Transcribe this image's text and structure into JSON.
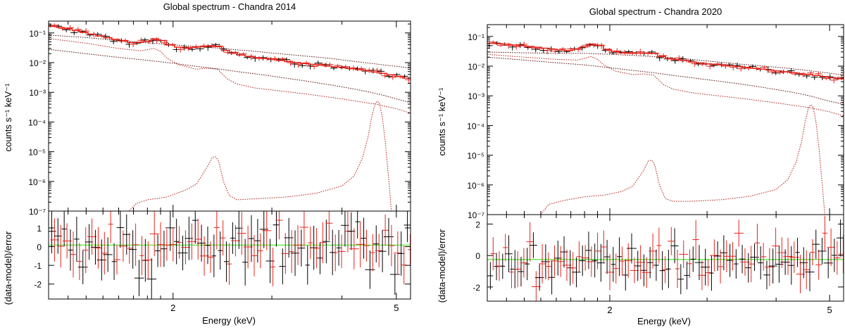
{
  "chart_data": [
    {
      "type": "line",
      "title": "Global spectrum - Chandra 2014",
      "xlabel": "Energy (keV)",
      "ylabel_top": "counts s⁻¹ keV⁻¹",
      "ylabel_bottom": "(data-model)/error",
      "x_scale": "log",
      "xlim": [
        1.2,
        5.3
      ],
      "x_ticks": [
        {
          "v": 2,
          "label": "2"
        },
        {
          "v": 5,
          "label": "5"
        }
      ],
      "top_y_scale": "log",
      "top_ylim": [
        1e-07,
        0.25
      ],
      "top_y_ticks": [
        {
          "v": 0.1,
          "label": "10⁻¹"
        },
        {
          "v": 0.01,
          "label": "10⁻²"
        },
        {
          "v": 0.001,
          "label": "10⁻³"
        },
        {
          "v": 0.0001,
          "label": "10⁻⁴"
        },
        {
          "v": 1e-05,
          "label": "10⁻⁵"
        },
        {
          "v": 1e-06,
          "label": "10⁻⁶"
        },
        {
          "v": 1e-07,
          "label": "10⁻⁷"
        }
      ],
      "bottom_ylim": [
        -2.8,
        1.9
      ],
      "bottom_y_ticks": [
        {
          "v": 1,
          "label": "1"
        },
        {
          "v": 0,
          "label": "0"
        },
        {
          "v": -1,
          "label": "-1"
        },
        {
          "v": -2,
          "label": "-2"
        }
      ],
      "zero_line": 0.08,
      "colors": {
        "obs1": "#000000",
        "obs2": "#e8231a",
        "zero": "#66ee55"
      },
      "model": {
        "x": [
          1.2,
          1.3,
          1.4,
          1.5,
          1.6,
          1.7,
          1.8,
          1.87,
          1.92,
          2.0,
          2.1,
          2.2,
          2.3,
          2.4,
          2.5,
          2.6,
          2.7,
          2.8,
          2.9,
          3.0,
          3.2,
          3.4,
          3.6,
          3.8,
          4.0,
          4.3,
          4.6,
          5.0,
          5.3
        ],
        "y": [
          0.175,
          0.14,
          0.1,
          0.075,
          0.057,
          0.046,
          0.052,
          0.066,
          0.055,
          0.035,
          0.031,
          0.033,
          0.036,
          0.035,
          0.024,
          0.019,
          0.017,
          0.015,
          0.014,
          0.013,
          0.011,
          0.0095,
          0.0085,
          0.0075,
          0.0068,
          0.0058,
          0.0048,
          0.0036,
          0.0028
        ]
      },
      "components": [
        {
          "x": [
            1.2,
            1.4,
            1.6,
            1.8,
            1.9,
            2.0,
            2.2,
            2.4,
            2.6,
            2.8,
            3.0,
            3.4,
            3.8,
            4.2,
            4.6,
            5.0,
            5.3
          ],
          "y": [
            0.085,
            0.07,
            0.055,
            0.046,
            0.043,
            0.04,
            0.035,
            0.031,
            0.027,
            0.024,
            0.021,
            0.017,
            0.014,
            0.011,
            0.009,
            0.0075,
            0.0066
          ]
        },
        {
          "x": [
            1.2,
            1.4,
            1.6,
            1.75,
            1.85,
            1.9,
            1.95,
            2.05,
            2.2,
            2.3,
            2.4,
            2.5,
            2.6,
            2.8,
            3.0,
            3.5,
            4.0,
            4.4,
            4.6,
            5.0,
            5.3
          ],
          "y": [
            0.065,
            0.045,
            0.03,
            0.025,
            0.03,
            0.024,
            0.014,
            0.0085,
            0.006,
            0.0065,
            0.006,
            0.0028,
            0.0019,
            0.0014,
            0.0012,
            0.00085,
            0.0006,
            0.00045,
            0.0004,
            0.00028,
            0.0002
          ]
        },
        {
          "x": [
            1.2,
            1.4,
            1.6,
            1.8,
            2.0,
            2.2,
            2.4,
            2.6,
            2.8,
            3.0,
            3.4,
            3.8,
            4.2,
            4.5,
            4.6,
            4.68,
            4.8,
            5.0,
            5.3
          ],
          "y": [
            0.028,
            0.02,
            0.015,
            0.012,
            0.0095,
            0.0075,
            0.0062,
            0.005,
            0.0042,
            0.0035,
            0.0025,
            0.0018,
            0.0013,
            0.001,
            0.0009,
            0.00085,
            0.00075,
            0.0006,
            0.00045
          ]
        },
        {
          "x": [
            1.67,
            1.72,
            1.8,
            1.95,
            2.1,
            2.2,
            2.3,
            2.35,
            2.38,
            2.41,
            2.46,
            2.52,
            2.6,
            2.8,
            3.2,
            3.6,
            4.0,
            4.2,
            4.35,
            4.45,
            4.52,
            4.58,
            4.62,
            4.66,
            4.72,
            4.78,
            4.85,
            4.9
          ],
          "y": [
            1e-07,
            1.8e-07,
            2.4e-07,
            3e-07,
            5e-07,
            8e-07,
            3e-06,
            6.5e-06,
            6.8e-06,
            5e-06,
            1e-06,
            3.3e-07,
            2.4e-07,
            2.6e-07,
            3e-07,
            4e-07,
            7e-07,
            1.5e-06,
            6e-06,
            3e-05,
            0.00015,
            0.0004,
            0.0005,
            0.00045,
            0.00015,
            2e-05,
            1e-06,
            1e-07
          ]
        }
      ]
    },
    {
      "type": "line",
      "title": "Global spectrum - Chandra 2020",
      "xlabel": "Energy (keV)",
      "ylabel_top": "counts s⁻¹ keV⁻¹",
      "ylabel_bottom": "(data-model)/error",
      "x_scale": "log",
      "xlim": [
        1.2,
        5.3
      ],
      "x_ticks": [
        {
          "v": 2,
          "label": "2"
        },
        {
          "v": 5,
          "label": "5"
        }
      ],
      "top_y_scale": "log",
      "top_ylim": [
        1e-07,
        0.25
      ],
      "top_y_ticks": [
        {
          "v": 0.1,
          "label": "10⁻¹"
        },
        {
          "v": 0.01,
          "label": "10⁻²"
        },
        {
          "v": 0.001,
          "label": "10⁻³"
        },
        {
          "v": 0.0001,
          "label": "10⁻⁴"
        },
        {
          "v": 1e-05,
          "label": "10⁻⁵"
        },
        {
          "v": 1e-06,
          "label": "10⁻⁶"
        },
        {
          "v": 1e-07,
          "label": "10⁻⁷"
        }
      ],
      "bottom_ylim": [
        -2.9,
        2.6
      ],
      "bottom_y_ticks": [
        {
          "v": 2,
          "label": "2"
        },
        {
          "v": 0,
          "label": "0"
        },
        {
          "v": -2,
          "label": "-2"
        }
      ],
      "zero_line": -0.25,
      "colors": {
        "obs1": "#000000",
        "obs2": "#e8231a",
        "zero": "#66ee55"
      },
      "model": {
        "x": [
          1.2,
          1.3,
          1.4,
          1.5,
          1.6,
          1.7,
          1.8,
          1.87,
          1.92,
          2.0,
          2.1,
          2.2,
          2.3,
          2.4,
          2.5,
          2.6,
          2.7,
          2.8,
          2.9,
          3.0,
          3.2,
          3.4,
          3.6,
          3.8,
          4.0,
          4.3,
          4.6,
          5.0,
          5.3
        ],
        "y": [
          0.06,
          0.055,
          0.048,
          0.042,
          0.036,
          0.033,
          0.045,
          0.058,
          0.05,
          0.033,
          0.028,
          0.027,
          0.028,
          0.027,
          0.02,
          0.017,
          0.016,
          0.014,
          0.013,
          0.012,
          0.011,
          0.0098,
          0.0088,
          0.0078,
          0.007,
          0.006,
          0.0052,
          0.0042,
          0.0036
        ]
      },
      "components": [
        {
          "x": [
            1.2,
            1.4,
            1.6,
            1.8,
            1.9,
            2.0,
            2.2,
            2.4,
            2.6,
            2.8,
            3.0,
            3.4,
            3.8,
            4.2,
            4.6,
            5.0,
            5.3
          ],
          "y": [
            0.03,
            0.028,
            0.027,
            0.027,
            0.026,
            0.025,
            0.023,
            0.021,
            0.019,
            0.017,
            0.015,
            0.012,
            0.01,
            0.0085,
            0.007,
            0.0058,
            0.005
          ]
        },
        {
          "x": [
            1.2,
            1.4,
            1.6,
            1.75,
            1.85,
            1.9,
            1.95,
            2.05,
            2.2,
            2.3,
            2.4,
            2.5,
            2.6,
            2.8,
            3.0,
            3.5,
            4.0,
            4.4,
            4.6,
            5.0,
            5.3
          ],
          "y": [
            0.025,
            0.02,
            0.017,
            0.016,
            0.021,
            0.017,
            0.011,
            0.0068,
            0.0052,
            0.0055,
            0.005,
            0.0024,
            0.0017,
            0.0013,
            0.0011,
            0.0008,
            0.00058,
            0.00045,
            0.0004,
            0.00029,
            0.00021
          ]
        },
        {
          "x": [
            1.2,
            1.4,
            1.6,
            1.8,
            2.0,
            2.2,
            2.4,
            2.6,
            2.8,
            3.0,
            3.4,
            3.8,
            4.2,
            4.5,
            4.6,
            4.68,
            4.8,
            5.0,
            5.3
          ],
          "y": [
            0.02,
            0.016,
            0.013,
            0.011,
            0.0088,
            0.0072,
            0.006,
            0.0049,
            0.0041,
            0.0035,
            0.0026,
            0.0019,
            0.0014,
            0.0011,
            0.001,
            0.00092,
            0.0008,
            0.00066,
            0.00052
          ]
        },
        {
          "x": [
            1.5,
            1.55,
            1.65,
            1.8,
            1.95,
            2.1,
            2.2,
            2.3,
            2.35,
            2.38,
            2.41,
            2.46,
            2.52,
            2.6,
            2.8,
            3.2,
            3.6,
            4.0,
            4.2,
            4.35,
            4.45,
            4.52,
            4.58,
            4.62,
            4.66,
            4.72,
            4.78,
            4.85,
            4.9
          ],
          "y": [
            1e-07,
            2.2e-07,
            3e-07,
            4e-07,
            4.5e-07,
            6e-07,
            9e-07,
            3e-06,
            6.5e-06,
            6.8e-06,
            5e-06,
            1e-06,
            3.5e-07,
            2.8e-07,
            2.8e-07,
            3.2e-07,
            4.2e-07,
            7e-07,
            1.5e-06,
            6e-06,
            3e-05,
            0.00015,
            0.0004,
            0.0005,
            0.00045,
            0.00015,
            2e-05,
            1e-06,
            1e-07
          ]
        }
      ]
    }
  ]
}
